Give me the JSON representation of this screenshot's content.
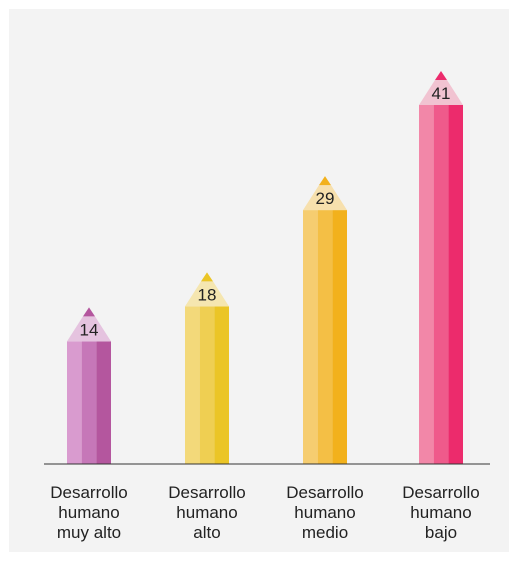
{
  "chart_data": {
    "type": "bar",
    "title": "",
    "xlabel": "",
    "ylabel": "",
    "categories": [
      "Desarrollo\nhumano\nmuy alto",
      "Desarrollo\nhumano\nalto",
      "Desarrollo\nhumano\nmedio",
      "Desarrollo\nhumano\nbajo"
    ],
    "values": [
      14,
      18,
      29,
      41
    ],
    "data_labels": [
      "14",
      "18",
      "29",
      "41"
    ],
    "ylim": [
      0,
      45
    ],
    "grid": false,
    "legend": "none",
    "bar_style": "pencil",
    "colors": [
      {
        "light": "#d99bcf",
        "mid": "#c677b8",
        "dark": "#b4569e",
        "tip": "#e5c3df",
        "lead": "#b4569e"
      },
      {
        "light": "#f3d97a",
        "mid": "#efcf52",
        "dark": "#ebc526",
        "tip": "#f5e6b0",
        "lead": "#ebc526"
      },
      {
        "light": "#f6cd70",
        "mid": "#f4bf45",
        "dark": "#f2b11c",
        "tip": "#f7e0ad",
        "lead": "#f2b11c"
      },
      {
        "light": "#f287a8",
        "mid": "#ef5a8b",
        "dark": "#ec2b6c",
        "tip": "#f1c3d1",
        "lead": "#ec2b6c"
      }
    ]
  }
}
